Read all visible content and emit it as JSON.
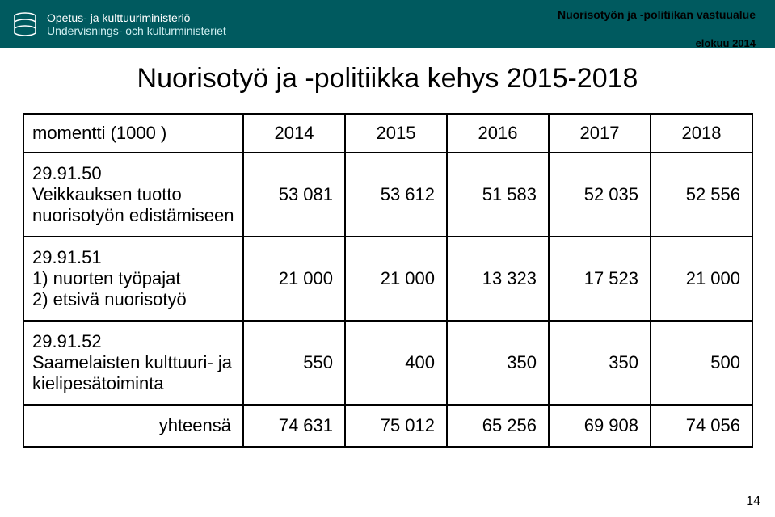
{
  "banner": {
    "ministry_line1": "Opetus- ja kulttuuriministeriö",
    "ministry_line2": "Undervisnings- och kulturministeriet",
    "banner_bg": "#005a5f"
  },
  "top_right": {
    "dept": "Nuorisotyön ja -politiikan vastuualue",
    "date": "elokuu 2014"
  },
  "title": "Nuorisotyö ja -politiikka kehys 2015-2018",
  "table": {
    "header_label": "momentti (1000 )",
    "years": [
      "2014",
      "2015",
      "2016",
      "2017",
      "2018"
    ],
    "rows": [
      {
        "label": "29.91.50\nVeikkauksen tuotto nuorisotyön edistämiseen",
        "values": [
          "53 081",
          "53 612",
          "51 583",
          "52 035",
          "52 556"
        ]
      },
      {
        "label": "29.91.51\n1) nuorten työpajat\n2) etsivä nuorisotyö",
        "values": [
          "21 000",
          "21 000",
          "13 323",
          "17 523",
          "21 000"
        ]
      },
      {
        "label": "29.91.52\nSaamelaisten kulttuuri- ja kielipesätoiminta",
        "values": [
          "550",
          "400",
          "350",
          "350",
          "500"
        ]
      }
    ],
    "total_label": "yhteensä",
    "totals": [
      "74 631",
      "75 012",
      "65 256",
      "69 908",
      "74 056"
    ]
  },
  "page_number": "14",
  "style": {
    "title_fontsize": 34,
    "cell_fontsize": 22,
    "border_color": "#000000",
    "background_color": "#ffffff",
    "num_align": "right"
  }
}
